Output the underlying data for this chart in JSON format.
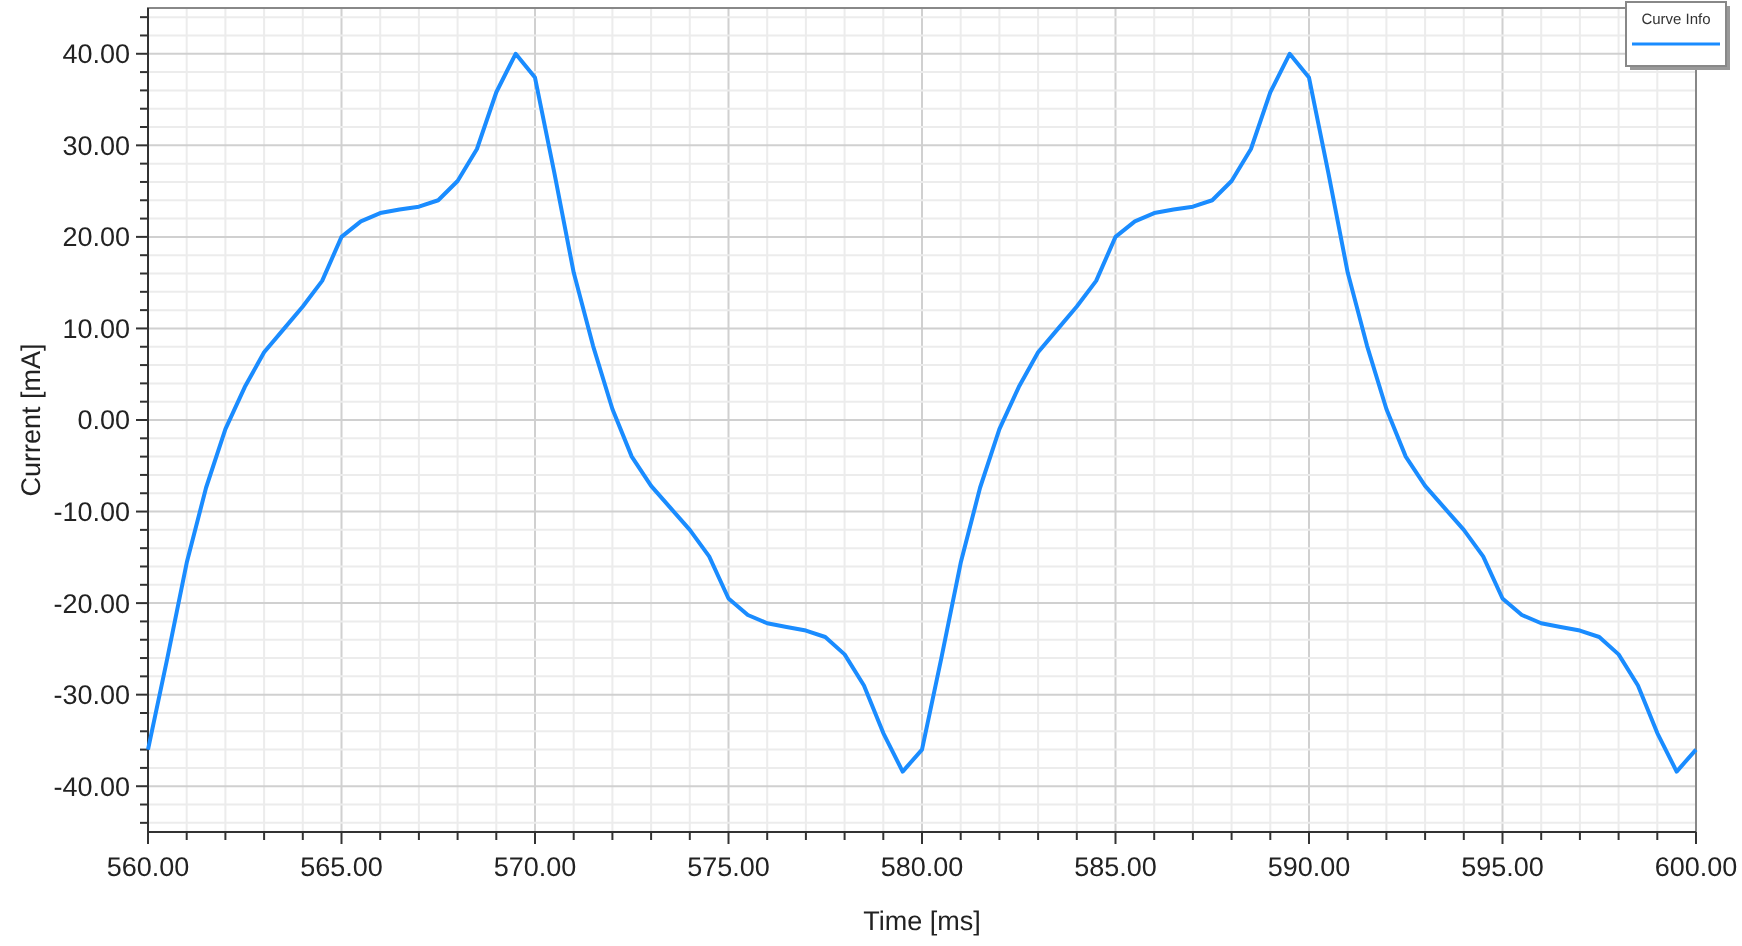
{
  "chart_data": {
    "type": "line",
    "xlabel": "Time [ms]",
    "ylabel": "Current [mA]",
    "xlim": [
      560,
      600
    ],
    "ylim": [
      -45,
      45
    ],
    "xticks": [
      {
        "value": 560,
        "label": "560.00"
      },
      {
        "value": 561,
        "label": null
      },
      {
        "value": 562,
        "label": null
      },
      {
        "value": 563,
        "label": null
      },
      {
        "value": 564,
        "label": null
      },
      {
        "value": 565,
        "label": "565.00"
      },
      {
        "value": 566,
        "label": null
      },
      {
        "value": 567,
        "label": null
      },
      {
        "value": 568,
        "label": null
      },
      {
        "value": 569,
        "label": null
      },
      {
        "value": 570,
        "label": "570.00"
      },
      {
        "value": 571,
        "label": null
      },
      {
        "value": 572,
        "label": null
      },
      {
        "value": 573,
        "label": null
      },
      {
        "value": 574,
        "label": null
      },
      {
        "value": 575,
        "label": "575.00"
      },
      {
        "value": 576,
        "label": null
      },
      {
        "value": 577,
        "label": null
      },
      {
        "value": 578,
        "label": null
      },
      {
        "value": 579,
        "label": null
      },
      {
        "value": 580,
        "label": "580.00"
      },
      {
        "value": 581,
        "label": null
      },
      {
        "value": 582,
        "label": null
      },
      {
        "value": 583,
        "label": null
      },
      {
        "value": 584,
        "label": null
      },
      {
        "value": 585,
        "label": "585.00"
      },
      {
        "value": 586,
        "label": null
      },
      {
        "value": 587,
        "label": null
      },
      {
        "value": 588,
        "label": null
      },
      {
        "value": 589,
        "label": null
      },
      {
        "value": 590,
        "label": "590.00"
      },
      {
        "value": 591,
        "label": null
      },
      {
        "value": 592,
        "label": null
      },
      {
        "value": 593,
        "label": null
      },
      {
        "value": 594,
        "label": null
      },
      {
        "value": 595,
        "label": "595.00"
      },
      {
        "value": 596,
        "label": null
      },
      {
        "value": 597,
        "label": null
      },
      {
        "value": 598,
        "label": null
      },
      {
        "value": 599,
        "label": null
      },
      {
        "value": 600,
        "label": "600.00"
      }
    ],
    "yticks": [
      {
        "value": -44,
        "label": null
      },
      {
        "value": -42,
        "label": null
      },
      {
        "value": -40,
        "label": "-40.00"
      },
      {
        "value": -38,
        "label": null
      },
      {
        "value": -36,
        "label": null
      },
      {
        "value": -34,
        "label": null
      },
      {
        "value": -32,
        "label": null
      },
      {
        "value": -30,
        "label": "-30.00"
      },
      {
        "value": -28,
        "label": null
      },
      {
        "value": -26,
        "label": null
      },
      {
        "value": -24,
        "label": null
      },
      {
        "value": -22,
        "label": null
      },
      {
        "value": -20,
        "label": "-20.00"
      },
      {
        "value": -18,
        "label": null
      },
      {
        "value": -16,
        "label": null
      },
      {
        "value": -14,
        "label": null
      },
      {
        "value": -12,
        "label": null
      },
      {
        "value": -10,
        "label": "-10.00"
      },
      {
        "value": -8,
        "label": null
      },
      {
        "value": -6,
        "label": null
      },
      {
        "value": -4,
        "label": null
      },
      {
        "value": -2,
        "label": null
      },
      {
        "value": 0,
        "label": "0.00"
      },
      {
        "value": 2,
        "label": null
      },
      {
        "value": 4,
        "label": null
      },
      {
        "value": 6,
        "label": null
      },
      {
        "value": 8,
        "label": null
      },
      {
        "value": 10,
        "label": "10.00"
      },
      {
        "value": 12,
        "label": null
      },
      {
        "value": 14,
        "label": null
      },
      {
        "value": 16,
        "label": null
      },
      {
        "value": 18,
        "label": null
      },
      {
        "value": 20,
        "label": "20.00"
      },
      {
        "value": 22,
        "label": null
      },
      {
        "value": 24,
        "label": null
      },
      {
        "value": 26,
        "label": null
      },
      {
        "value": 28,
        "label": null
      },
      {
        "value": 30,
        "label": "30.00"
      },
      {
        "value": 32,
        "label": null
      },
      {
        "value": 34,
        "label": null
      },
      {
        "value": 36,
        "label": null
      },
      {
        "value": 38,
        "label": null
      },
      {
        "value": 40,
        "label": "40.00"
      },
      {
        "value": 42,
        "label": null
      },
      {
        "value": 44,
        "label": null
      }
    ],
    "grid": true,
    "legend": "top right",
    "marker": "none",
    "line_style": "solid",
    "x": [
      560,
      560.5,
      561,
      561.5,
      562,
      562.5,
      563,
      563.5,
      564,
      564.5,
      565,
      565.5,
      566,
      566.5,
      567,
      567.5,
      568,
      568.5,
      569,
      569.5,
      570,
      570.5,
      571,
      571.5,
      572,
      572.5,
      573,
      573.5,
      574,
      574.5,
      575,
      575.5,
      576,
      576.5,
      577,
      577.5,
      578,
      578.5,
      579,
      579.5,
      580,
      580.5,
      581,
      581.5,
      582,
      582.5,
      583,
      583.5,
      584,
      584.5,
      585,
      585.5,
      586,
      586.5,
      587,
      587.5,
      588,
      588.5,
      589,
      589.5,
      590,
      590.5,
      591,
      591.5,
      592,
      592.5,
      593,
      593.5,
      594,
      594.5,
      595,
      595.5,
      596,
      596.5,
      597,
      597.5,
      598,
      598.5,
      599,
      599.5,
      600
    ],
    "series": [
      {
        "name": "Curve Info",
        "color": "#1a8cff",
        "values": [
          -36,
          -26,
          -15.6,
          -7.4,
          -1,
          3.6,
          7.4,
          9.9,
          12.4,
          15.2,
          20,
          21.7,
          22.6,
          23,
          23.3,
          24,
          26.1,
          29.6,
          35.8,
          40,
          37.4,
          27,
          16.1,
          8.1,
          1.2,
          -4,
          -7.2,
          -9.6,
          -12,
          -14.9,
          -19.5,
          -21.3,
          -22.2,
          -22.6,
          -23,
          -23.7,
          -25.6,
          -29,
          -34.2,
          -38.4,
          -36,
          -26,
          -15.6,
          -7.4,
          -1,
          3.6,
          7.4,
          9.9,
          12.4,
          15.2,
          20,
          21.7,
          22.6,
          23,
          23.3,
          24,
          26.1,
          29.6,
          35.8,
          40,
          37.4,
          27,
          16.1,
          8.1,
          1.2,
          -4,
          -7.2,
          -9.6,
          -12,
          -14.9,
          -19.5,
          -21.3,
          -22.2,
          -22.6,
          -23,
          -23.7,
          -25.6,
          -29,
          -34.2,
          -38.4,
          -36
        ]
      }
    ]
  }
}
